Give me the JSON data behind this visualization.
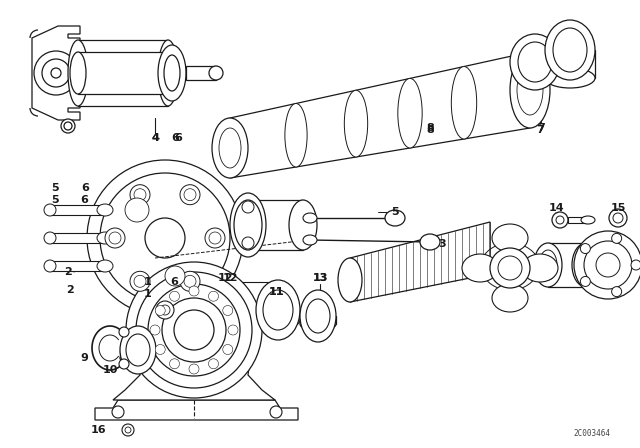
{
  "background_color": "#ffffff",
  "line_color": "#1a1a1a",
  "fill_color": "#ffffff",
  "watermark": "2C003464",
  "figsize": [
    6.4,
    4.48
  ],
  "dpi": 100,
  "xlim": [
    0,
    640
  ],
  "ylim": [
    0,
    448
  ]
}
